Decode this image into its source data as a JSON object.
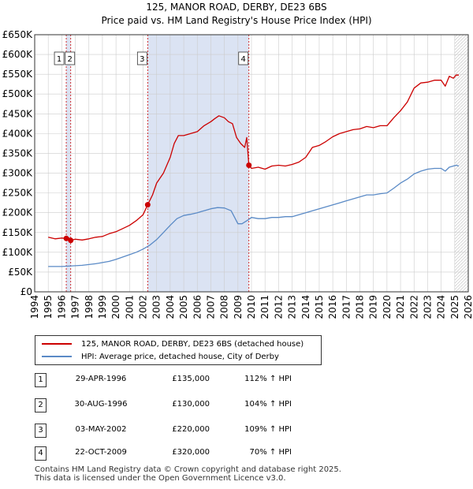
{
  "colors": {
    "price": "#cc0000",
    "hpi": "#5a8ac6",
    "shade": "#dbe3f3",
    "grid": "#cccccc",
    "marker": "#cc0000"
  },
  "chart_data": {
    "type": "line",
    "title": "125, MANOR ROAD, DERBY, DE23 6BS",
    "subtitle": "Price paid vs. HM Land Registry's House Price Index (HPI)",
    "ylim": [
      0,
      650000
    ],
    "xlim": [
      1994,
      2026
    ],
    "y_ticks": [
      0,
      50000,
      100000,
      150000,
      200000,
      250000,
      300000,
      350000,
      400000,
      450000,
      500000,
      550000,
      600000,
      650000
    ],
    "y_tick_labels": [
      "£0",
      "£50K",
      "£100K",
      "£150K",
      "£200K",
      "£250K",
      "£300K",
      "£350K",
      "£400K",
      "£450K",
      "£500K",
      "£550K",
      "£600K",
      "£650K"
    ],
    "x_ticks": [
      1994,
      1995,
      1996,
      1997,
      1998,
      1999,
      2000,
      2001,
      2002,
      2003,
      2004,
      2005,
      2006,
      2007,
      2008,
      2009,
      2010,
      2011,
      2012,
      2013,
      2014,
      2015,
      2016,
      2017,
      2018,
      2019,
      2020,
      2021,
      2022,
      2023,
      2024,
      2025,
      2026
    ],
    "x_tick_labels": [
      "1994",
      "1995",
      "1996",
      "1997",
      "1998",
      "1999",
      "2000",
      "2001",
      "2002",
      "2003",
      "2004",
      "2005",
      "2006",
      "2007",
      "2008",
      "2009",
      "2010",
      "2011",
      "2012",
      "2013",
      "2014",
      "2015",
      "2016",
      "2017",
      "2018",
      "2019",
      "2020",
      "2021",
      "2022",
      "2023",
      "2024",
      "2025",
      "2026"
    ],
    "shaded_ranges": [
      [
        1996.33,
        1996.66
      ],
      [
        2002.34,
        2009.81
      ]
    ],
    "future_hatch_from": 2025.0,
    "series": [
      {
        "name": "125, MANOR ROAD, DERBY, DE23 6BS (detached house)",
        "x": [
          1995.0,
          1995.5,
          1996.0,
          1996.33,
          1996.5,
          1996.66,
          1997.0,
          1997.5,
          1998.0,
          1998.5,
          1999.0,
          1999.5,
          2000.0,
          2000.5,
          2001.0,
          2001.5,
          2002.0,
          2002.34,
          2002.7,
          2003.0,
          2003.5,
          2004.0,
          2004.3,
          2004.6,
          2005.0,
          2005.5,
          2006.0,
          2006.5,
          2007.0,
          2007.3,
          2007.6,
          2008.0,
          2008.3,
          2008.6,
          2008.9,
          2009.2,
          2009.5,
          2009.65,
          2009.81,
          2010.0,
          2010.5,
          2011.0,
          2011.5,
          2012.0,
          2012.5,
          2013.0,
          2013.5,
          2014.0,
          2014.5,
          2015.0,
          2015.5,
          2016.0,
          2016.5,
          2017.0,
          2017.5,
          2018.0,
          2018.5,
          2019.0,
          2019.5,
          2020.0,
          2020.5,
          2021.0,
          2021.5,
          2022.0,
          2022.5,
          2023.0,
          2023.5,
          2024.0,
          2024.3,
          2024.6,
          2024.9,
          2025.1,
          2025.3
        ],
        "values": [
          138000,
          134000,
          136000,
          135000,
          137000,
          130000,
          133000,
          131000,
          134000,
          138000,
          140000,
          147000,
          152000,
          160000,
          168000,
          180000,
          195000,
          220000,
          245000,
          275000,
          300000,
          340000,
          375000,
          395000,
          395000,
          400000,
          405000,
          420000,
          430000,
          438000,
          445000,
          440000,
          430000,
          425000,
          390000,
          375000,
          365000,
          390000,
          320000,
          312000,
          315000,
          310000,
          318000,
          320000,
          318000,
          322000,
          328000,
          340000,
          365000,
          370000,
          380000,
          392000,
          400000,
          405000,
          410000,
          412000,
          418000,
          415000,
          420000,
          420000,
          440000,
          458000,
          480000,
          515000,
          528000,
          530000,
          535000,
          535000,
          520000,
          545000,
          540000,
          548000,
          548000
        ]
      },
      {
        "name": "HPI: Average price, detached house, City of Derby",
        "x": [
          1995.0,
          1995.5,
          1996.0,
          1996.5,
          1997.0,
          1997.5,
          1998.0,
          1998.5,
          1999.0,
          1999.5,
          2000.0,
          2000.5,
          2001.0,
          2001.5,
          2002.0,
          2002.5,
          2003.0,
          2003.5,
          2004.0,
          2004.5,
          2005.0,
          2005.5,
          2006.0,
          2006.5,
          2007.0,
          2007.5,
          2008.0,
          2008.5,
          2009.0,
          2009.3,
          2009.81,
          2010.0,
          2010.5,
          2011.0,
          2011.5,
          2012.0,
          2012.5,
          2013.0,
          2013.5,
          2014.0,
          2014.5,
          2015.0,
          2015.5,
          2016.0,
          2016.5,
          2017.0,
          2017.5,
          2018.0,
          2018.5,
          2019.0,
          2019.5,
          2020.0,
          2020.5,
          2021.0,
          2021.5,
          2022.0,
          2022.5,
          2023.0,
          2023.5,
          2024.0,
          2024.3,
          2024.6,
          2024.9,
          2025.1,
          2025.3
        ],
        "values": [
          64000,
          64000,
          64000,
          65000,
          66000,
          67000,
          69000,
          71000,
          74000,
          77000,
          82000,
          88000,
          94000,
          100000,
          108000,
          118000,
          132000,
          150000,
          168000,
          185000,
          193000,
          196000,
          200000,
          205000,
          210000,
          213000,
          212000,
          205000,
          172000,
          172000,
          183000,
          188000,
          185000,
          185000,
          188000,
          188000,
          190000,
          190000,
          195000,
          200000,
          205000,
          210000,
          215000,
          220000,
          225000,
          230000,
          235000,
          240000,
          245000,
          245000,
          248000,
          250000,
          262000,
          275000,
          285000,
          298000,
          305000,
          310000,
          312000,
          312000,
          305000,
          315000,
          318000,
          320000,
          318000
        ]
      }
    ],
    "sales": [
      {
        "label": "1",
        "x": 1996.33,
        "value": 135000
      },
      {
        "label": "2",
        "x": 1996.66,
        "value": 130000
      },
      {
        "label": "3",
        "x": 2002.34,
        "value": 220000
      },
      {
        "label": "4",
        "x": 2009.81,
        "value": 320000
      }
    ]
  },
  "legend": {
    "price_label": "125, MANOR ROAD, DERBY, DE23 6BS (detached house)",
    "hpi_label": "HPI: Average price, detached house, City of Derby"
  },
  "transactions": [
    {
      "num": "1",
      "date": "29-APR-1996",
      "price": "£135,000",
      "hpi": "112% ↑ HPI"
    },
    {
      "num": "2",
      "date": "30-AUG-1996",
      "price": "£130,000",
      "hpi": "104% ↑ HPI"
    },
    {
      "num": "3",
      "date": "03-MAY-2002",
      "price": "£220,000",
      "hpi": "109% ↑ HPI"
    },
    {
      "num": "4",
      "date": "22-OCT-2009",
      "price": "£320,000",
      "hpi": "70% ↑ HPI"
    }
  ],
  "footer": {
    "line1": "Contains HM Land Registry data © Crown copyright and database right 2025.",
    "line2": "This data is licensed under the Open Government Licence v3.0."
  }
}
